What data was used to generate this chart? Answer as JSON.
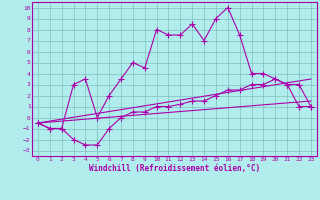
{
  "xlabel": "Windchill (Refroidissement éolien,°C)",
  "background_color": "#b2eded",
  "grid_color": "#80c0c0",
  "line_color": "#aa00aa",
  "xlim": [
    -0.5,
    23.5
  ],
  "ylim": [
    -3.5,
    10.5
  ],
  "xticks": [
    0,
    1,
    2,
    3,
    4,
    5,
    6,
    7,
    8,
    9,
    10,
    11,
    12,
    13,
    14,
    15,
    16,
    17,
    18,
    19,
    20,
    21,
    22,
    23
  ],
  "yticks": [
    -3,
    -2,
    -1,
    0,
    1,
    2,
    3,
    4,
    5,
    6,
    7,
    8,
    9,
    10
  ],
  "series1_x": [
    0,
    1,
    2,
    3,
    4,
    5,
    6,
    7,
    8,
    9,
    10,
    11,
    12,
    13,
    14,
    15,
    16,
    17,
    18,
    19,
    20,
    21,
    22,
    23
  ],
  "series1_y": [
    -0.5,
    -1,
    -1,
    3,
    3.5,
    0,
    2,
    3.5,
    5,
    4.5,
    8,
    7.5,
    7.5,
    8.5,
    7,
    9,
    10,
    7.5,
    4,
    4,
    3.5,
    3,
    1,
    1
  ],
  "series2_x": [
    0,
    1,
    2,
    3,
    4,
    5,
    6,
    7,
    8,
    9,
    10,
    11,
    12,
    13,
    14,
    15,
    16,
    17,
    18,
    19,
    20,
    21,
    22,
    23
  ],
  "series2_y": [
    -0.5,
    -1,
    -1,
    -2,
    -2.5,
    -2.5,
    -1,
    0,
    0.5,
    0.5,
    1,
    1,
    1.2,
    1.5,
    1.5,
    2,
    2.5,
    2.5,
    3,
    3,
    3.5,
    3,
    3,
    1
  ],
  "series3_x": [
    0,
    23
  ],
  "series3_y": [
    -0.5,
    1.5
  ],
  "series4_x": [
    0,
    23
  ],
  "series4_y": [
    -0.5,
    3.5
  ]
}
